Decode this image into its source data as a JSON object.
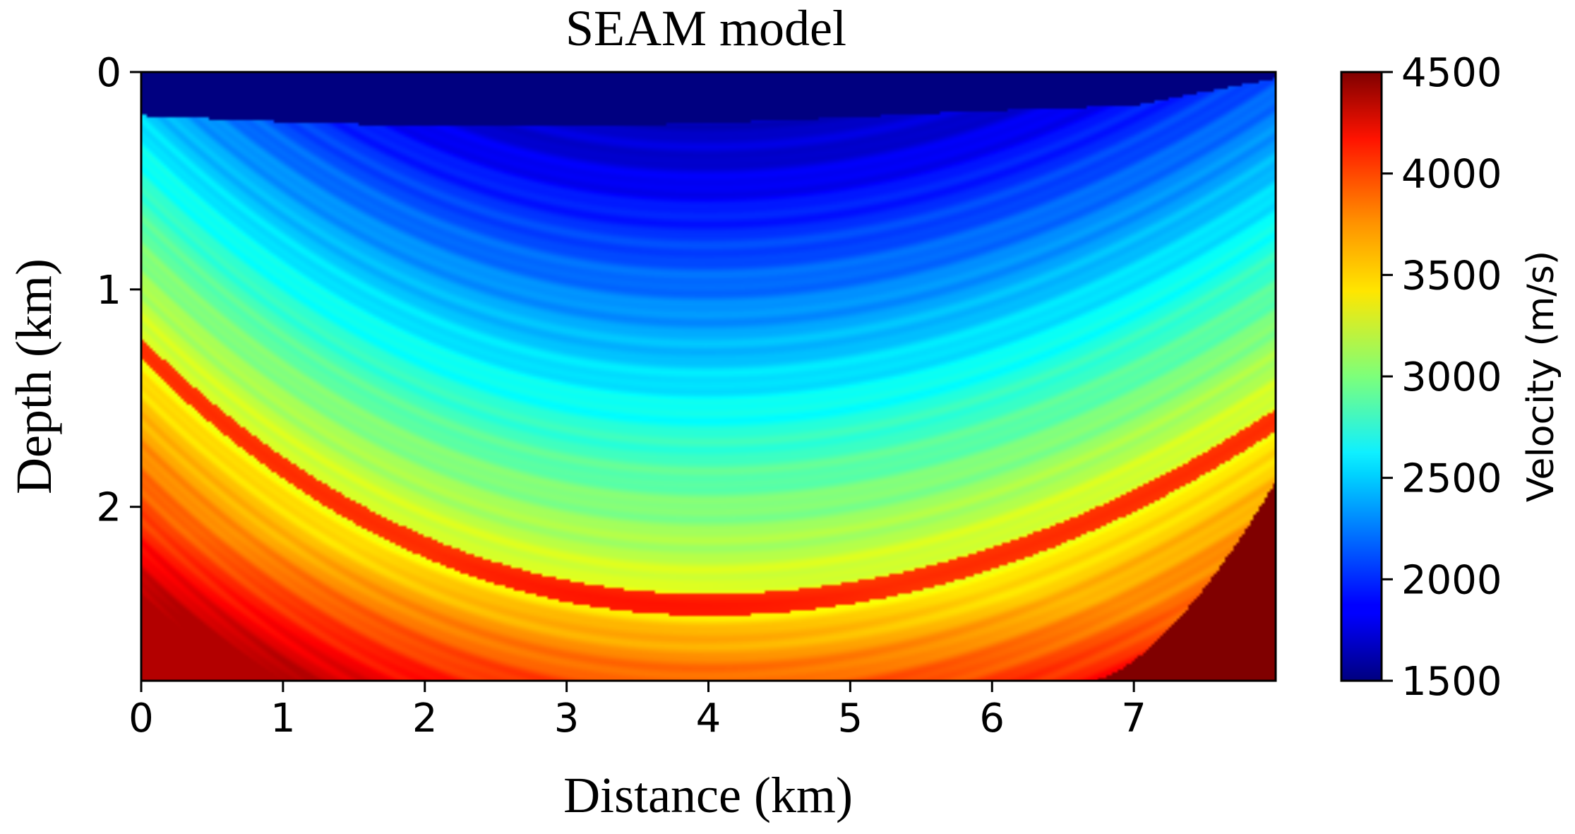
{
  "chart_data": {
    "type": "heatmap",
    "title": "SEAM model",
    "xlabel": "Distance (km)",
    "ylabel": "Depth (km)",
    "xlim": [
      0,
      8
    ],
    "ylim": [
      0,
      2.8
    ],
    "y_inverted": true,
    "x_ticks": [
      "0",
      "1",
      "2",
      "3",
      "4",
      "5",
      "6",
      "7"
    ],
    "x_tick_values": [
      0,
      1,
      2,
      3,
      4,
      5,
      6,
      7
    ],
    "y_ticks": [
      "0",
      "1",
      "2"
    ],
    "y_tick_values": [
      0,
      1,
      2
    ],
    "colormap": "jet",
    "colorbar": {
      "label": "Velocity (m/s)",
      "range": [
        1500,
        4500
      ],
      "ticks": [
        "1500",
        "2000",
        "2500",
        "3000",
        "3500",
        "4000",
        "4500"
      ],
      "tick_values": [
        1500,
        2000,
        2500,
        3000,
        3500,
        4000,
        4500
      ]
    },
    "features": {
      "water_layer": {
        "velocity": 1500,
        "depth_km": [
          0,
          0.2
        ]
      },
      "high_velocity_layer": {
        "velocity": 4000,
        "trough_x_km": 4.0,
        "trough_depth_km": 2.45,
        "left_depth_km": 1.5,
        "right_depth_km": 1.6,
        "thickness_km": 0.1
      },
      "salt_body": {
        "velocity": 4500,
        "x_km": [
          6.7,
          8.0
        ],
        "top_depth_km": 1.93
      }
    },
    "grid": false
  }
}
